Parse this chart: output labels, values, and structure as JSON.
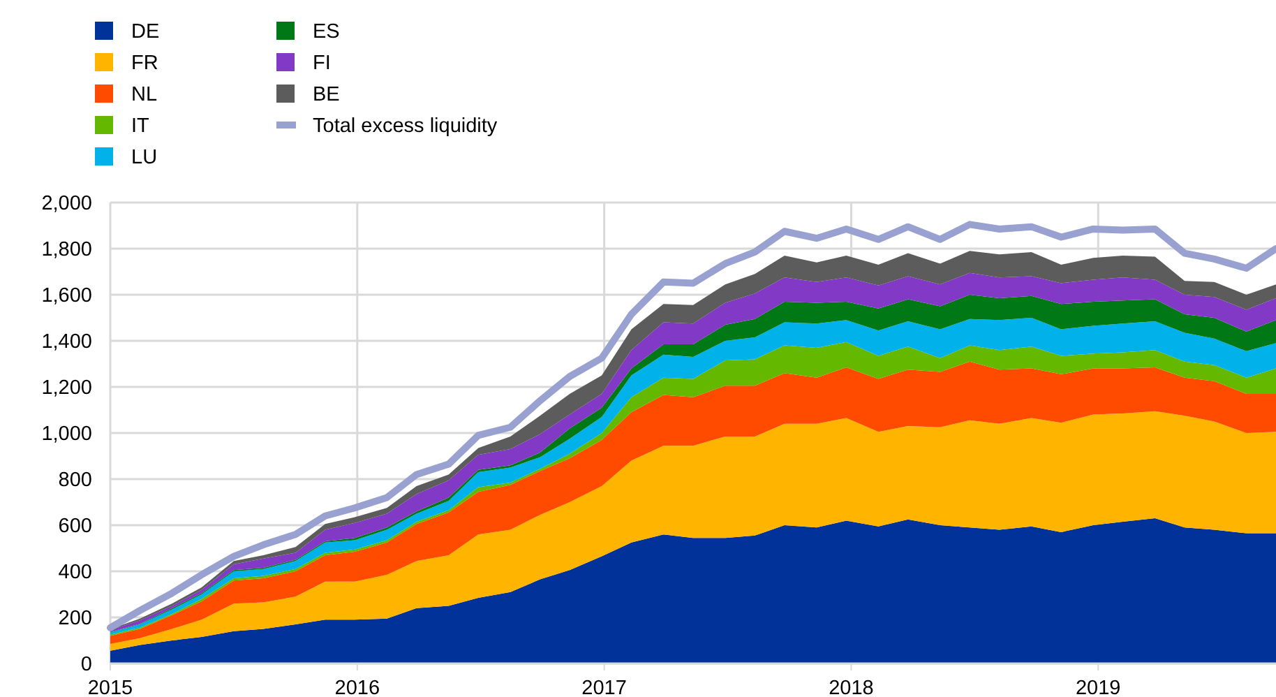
{
  "chart_data": {
    "type": "area",
    "stacked": true,
    "grid": true,
    "legend": "top left",
    "x": [
      2015.0,
      2015.12,
      2015.25,
      2015.37,
      2015.5,
      2015.62,
      2015.75,
      2015.87,
      2015.99,
      2016.12,
      2016.24,
      2016.37,
      2016.49,
      2016.62,
      2016.74,
      2016.86,
      2016.99,
      2017.11,
      2017.24,
      2017.36,
      2017.49,
      2017.61,
      2017.73,
      2017.86,
      2017.98,
      2018.11,
      2018.23,
      2018.36,
      2018.48,
      2018.6,
      2018.73,
      2018.85,
      2018.98,
      2019.1,
      2019.23,
      2019.35,
      2019.47,
      2019.6,
      2019.72
    ],
    "xlim": [
      2015,
      2019.72
    ],
    "xticks": [
      2015,
      2016,
      2017,
      2018,
      2019
    ],
    "ylim": [
      0,
      2000
    ],
    "yticks": [
      {
        "value": 0,
        "label": "0"
      },
      {
        "value": 200,
        "label": "200"
      },
      {
        "value": 400,
        "label": "400"
      },
      {
        "value": 600,
        "label": "600"
      },
      {
        "value": 800,
        "label": "800"
      },
      {
        "value": 1000,
        "label": "1,000"
      },
      {
        "value": 1200,
        "label": "1,200"
      },
      {
        "value": 1400,
        "label": "1,400"
      },
      {
        "value": 1600,
        "label": "1,600"
      },
      {
        "value": 1800,
        "label": "1,800"
      },
      {
        "value": 2000,
        "label": "2,000"
      }
    ],
    "series": [
      {
        "name": "DE",
        "color": "#003299",
        "values": [
          55,
          80,
          100,
          115,
          140,
          150,
          170,
          190,
          190,
          195,
          240,
          250,
          285,
          310,
          365,
          405,
          465,
          525,
          560,
          545,
          545,
          555,
          600,
          590,
          620,
          595,
          625,
          600,
          590,
          580,
          595,
          570,
          600,
          615,
          630,
          590,
          580,
          565,
          565
        ]
      },
      {
        "name": "FR",
        "color": "#ffb400",
        "values": [
          30,
          30,
          50,
          75,
          120,
          115,
          120,
          165,
          165,
          190,
          205,
          220,
          275,
          270,
          280,
          295,
          305,
          355,
          385,
          400,
          440,
          430,
          440,
          450,
          445,
          410,
          405,
          425,
          465,
          460,
          470,
          475,
          480,
          470,
          465,
          485,
          470,
          435,
          440
        ]
      },
      {
        "name": "NL",
        "color": "#ff4b00",
        "values": [
          35,
          40,
          60,
          80,
          100,
          105,
          110,
          115,
          130,
          140,
          160,
          185,
          185,
          195,
          190,
          190,
          200,
          210,
          220,
          210,
          220,
          220,
          220,
          200,
          220,
          230,
          245,
          240,
          255,
          235,
          215,
          210,
          200,
          195,
          190,
          165,
          175,
          170,
          165
        ]
      },
      {
        "name": "IT",
        "color": "#65b800",
        "values": [
          5,
          5,
          5,
          10,
          10,
          10,
          10,
          10,
          10,
          10,
          10,
          10,
          20,
          10,
          10,
          20,
          30,
          65,
          75,
          80,
          110,
          115,
          120,
          130,
          110,
          100,
          100,
          60,
          70,
          85,
          95,
          80,
          65,
          70,
          75,
          70,
          70,
          70,
          110
        ]
      },
      {
        "name": "LU",
        "color": "#00b1ea",
        "values": [
          10,
          15,
          20,
          20,
          30,
          30,
          35,
          45,
          40,
          45,
          35,
          40,
          65,
          65,
          50,
          65,
          70,
          95,
          100,
          95,
          85,
          95,
          100,
          105,
          95,
          110,
          110,
          125,
          115,
          130,
          125,
          115,
          120,
          125,
          125,
          125,
          115,
          115,
          110
        ]
      },
      {
        "name": "ES",
        "color": "#007816",
        "values": [
          2,
          2,
          5,
          5,
          5,
          5,
          5,
          5,
          10,
          10,
          10,
          15,
          10,
          10,
          20,
          45,
          40,
          30,
          45,
          55,
          70,
          80,
          90,
          90,
          80,
          95,
          95,
          100,
          105,
          95,
          95,
          110,
          105,
          100,
          95,
          80,
          90,
          85,
          100
        ]
      },
      {
        "name": "FI",
        "color": "#8139c6",
        "values": [
          8,
          15,
          10,
          15,
          25,
          40,
          30,
          50,
          65,
          60,
          75,
          75,
          65,
          70,
          80,
          60,
          60,
          80,
          95,
          90,
          95,
          110,
          105,
          90,
          105,
          100,
          100,
          95,
          95,
          90,
          85,
          90,
          95,
          100,
          85,
          85,
          90,
          95,
          95
        ]
      },
      {
        "name": "BE",
        "color": "#5c5c5c",
        "values": [
          4,
          8,
          10,
          10,
          15,
          15,
          25,
          25,
          25,
          25,
          35,
          25,
          30,
          55,
          80,
          90,
          80,
          90,
          80,
          80,
          80,
          85,
          95,
          85,
          95,
          90,
          100,
          90,
          95,
          100,
          105,
          80,
          95,
          95,
          100,
          60,
          65,
          65,
          60
        ]
      },
      {
        "name": "Total excess liquidity",
        "type": "line",
        "color": "#98a1d0",
        "values": [
          155,
          230,
          305,
          385,
          465,
          515,
          560,
          640,
          675,
          720,
          820,
          865,
          990,
          1025,
          1140,
          1245,
          1325,
          1515,
          1655,
          1650,
          1735,
          1785,
          1875,
          1845,
          1885,
          1840,
          1895,
          1840,
          1905,
          1885,
          1895,
          1850,
          1885,
          1880,
          1885,
          1780,
          1755,
          1715,
          1800
        ]
      }
    ]
  }
}
